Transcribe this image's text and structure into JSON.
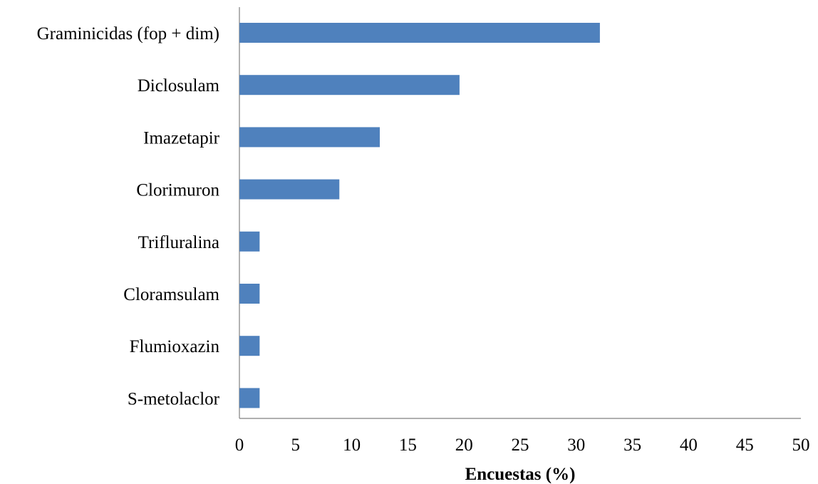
{
  "chart_data": {
    "type": "bar",
    "orientation": "horizontal",
    "categories": [
      "Graminicidas (fop + dim)",
      "Diclosulam",
      "Imazetapir",
      "Clorimuron",
      "Trifluralina",
      "Cloramsulam",
      "Flumioxazin",
      "S-metolaclor"
    ],
    "values": [
      32.1,
      19.6,
      12.5,
      8.9,
      1.8,
      1.8,
      1.8,
      1.8
    ],
    "xlabel": "Encuestas (%)",
    "ylabel": "",
    "xlim": [
      0,
      50
    ],
    "xticks": [
      "0",
      "5",
      "10",
      "15",
      "20",
      "25",
      "30",
      "35",
      "40",
      "45",
      "50"
    ],
    "grid": false,
    "bar_color": "#4f81bd"
  }
}
